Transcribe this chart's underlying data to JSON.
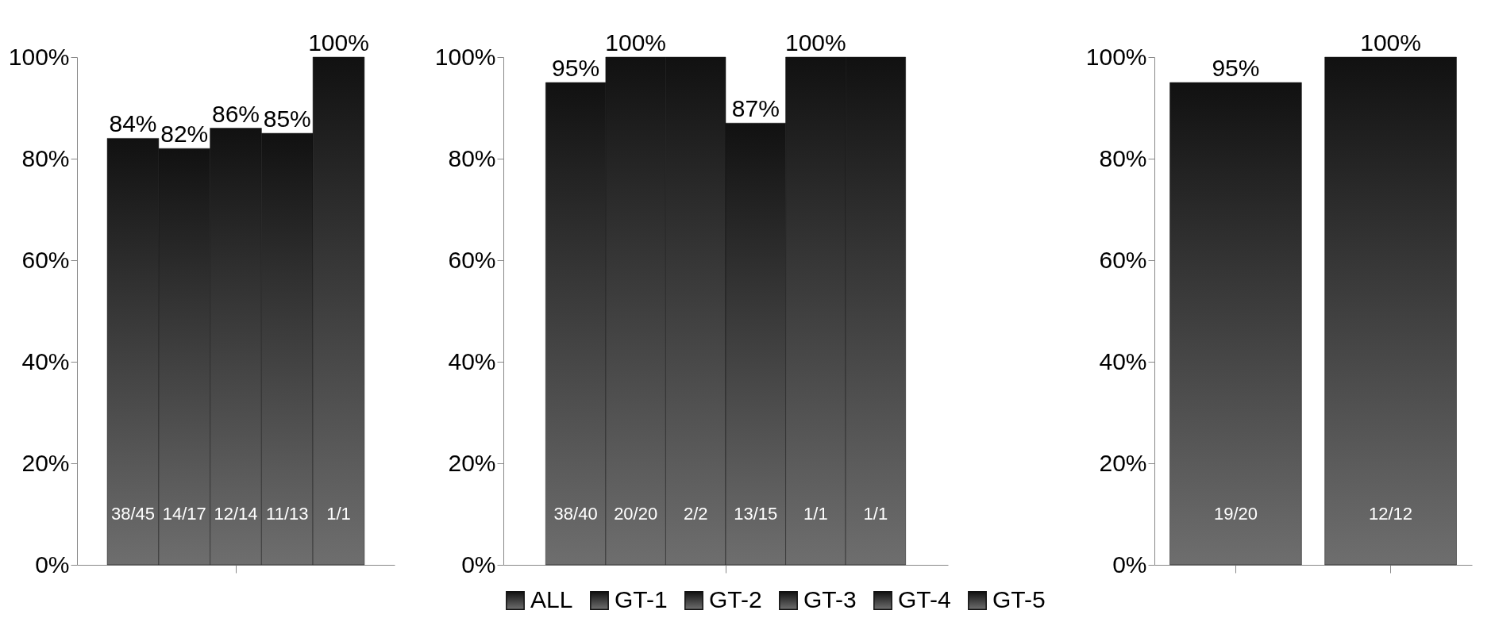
{
  "chart_data": [
    {
      "type": "bar",
      "categories": [
        null
      ],
      "ylim": [
        0,
        100
      ],
      "yticks": [
        {
          "value": 0,
          "label": "0%"
        },
        {
          "value": 20,
          "label": "20%"
        },
        {
          "value": 40,
          "label": "40%"
        },
        {
          "value": 60,
          "label": "60%"
        },
        {
          "value": 80,
          "label": "80%"
        },
        {
          "value": 100,
          "label": "100%"
        }
      ],
      "legend": false,
      "series": [
        {
          "color": "#111111",
          "values": [
            84
          ],
          "value_labels": [
            "84%"
          ]
        },
        {
          "color": "#111111",
          "values": [
            82
          ],
          "value_labels": [
            "82%"
          ]
        },
        {
          "color": "#111111",
          "values": [
            86
          ],
          "value_labels": [
            "86%"
          ]
        },
        {
          "color": "#111111",
          "values": [
            85
          ],
          "value_labels": [
            "85%"
          ]
        },
        {
          "color": "#111111",
          "values": [
            100
          ],
          "value_labels": [
            "100%"
          ]
        }
      ],
      "annotations": [
        "38/45",
        "14/17",
        "12/14",
        "11/13",
        "1/1"
      ]
    },
    {
      "type": "bar",
      "categories": [
        null
      ],
      "ylim": [
        0,
        100
      ],
      "yticks": [
        {
          "value": 0,
          "label": "0%"
        },
        {
          "value": 20,
          "label": "20%"
        },
        {
          "value": 40,
          "label": "40%"
        },
        {
          "value": 60,
          "label": "60%"
        },
        {
          "value": 80,
          "label": "80%"
        },
        {
          "value": 100,
          "label": "100%"
        }
      ],
      "legend": "bottom",
      "series": [
        {
          "name": "ALL",
          "color": "#111111",
          "values": [
            95
          ],
          "value_labels": [
            "95%"
          ]
        },
        {
          "name": "GT-1",
          "color": "#111111",
          "values": [
            100
          ],
          "value_labels": [
            "100%"
          ]
        },
        {
          "name": "GT-2",
          "color": "#111111",
          "values": [
            100
          ],
          "value_labels": [
            null
          ]
        },
        {
          "name": "GT-3",
          "color": "#111111",
          "values": [
            87
          ],
          "value_labels": [
            "87%"
          ]
        },
        {
          "name": "GT-4",
          "color": "#111111",
          "values": [
            100
          ],
          "value_labels": [
            "100%"
          ]
        },
        {
          "name": "GT-5",
          "color": "#111111",
          "values": [
            100
          ],
          "value_labels": [
            null
          ]
        }
      ],
      "annotations": [
        "38/40",
        "20/20",
        "2/2",
        "13/15",
        "1/1",
        "1/1"
      ]
    },
    {
      "type": "bar",
      "categories": [
        null,
        null
      ],
      "ylim": [
        0,
        100
      ],
      "yticks": [
        {
          "value": 0,
          "label": "0%"
        },
        {
          "value": 20,
          "label": "20%"
        },
        {
          "value": 40,
          "label": "40%"
        },
        {
          "value": 60,
          "label": "60%"
        },
        {
          "value": 80,
          "label": "80%"
        },
        {
          "value": 100,
          "label": "100%"
        }
      ],
      "legend": false,
      "series": [
        {
          "color": "#111111",
          "values": [
            95,
            100
          ],
          "value_labels": [
            "95%",
            "100%"
          ]
        }
      ],
      "annotations": [
        "19/20",
        "12/12"
      ]
    }
  ]
}
